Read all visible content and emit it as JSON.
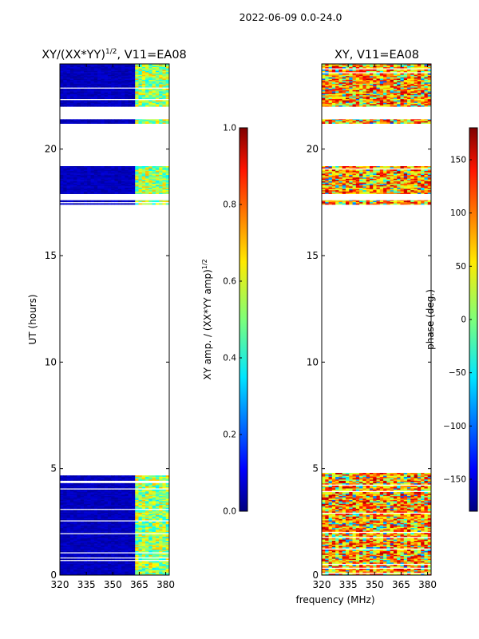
{
  "suptitle": "2022-06-09 0.0-24.0",
  "shared_xlabel": "frequency (MHz)",
  "colors": {
    "white": "#ffffff",
    "axes": "#000000"
  },
  "chart_data": [
    {
      "type": "heatmap",
      "title_main": "XY/(XX*YY)",
      "title_sup": "1/2",
      "title_tail": ", V11=EA08",
      "xlabel": "",
      "ylabel": "UT (hours)",
      "xlim": [
        320,
        382
      ],
      "ylim": [
        0,
        24
      ],
      "xticks": [
        "320",
        "335",
        "350",
        "365",
        "380"
      ],
      "xtick_values": [
        320,
        335,
        350,
        365,
        380
      ],
      "yticks": [
        "0",
        "5",
        "10",
        "15",
        "20"
      ],
      "ytick_values": [
        0,
        5,
        10,
        15,
        20
      ],
      "data_hour_ranges": [
        [
          0.0,
          4.8
        ],
        [
          17.4,
          17.6
        ],
        [
          17.9,
          19.2
        ],
        [
          21.2,
          21.4
        ],
        [
          22.0,
          24.0
        ]
      ],
      "colorbar": {
        "label": "XY amp. / (XX*YY amp)",
        "label_sup": "1/2",
        "colormap": "jet",
        "range": [
          0.0,
          1.0
        ],
        "ticks": [
          "0.0",
          "0.2",
          "0.4",
          "0.6",
          "0.8",
          "1.0"
        ],
        "tick_values": [
          0.0,
          0.2,
          0.4,
          0.6,
          0.8,
          1.0
        ]
      }
    },
    {
      "type": "heatmap",
      "title_main": "XY, V11=EA08",
      "xlabel": "frequency (MHz)",
      "ylabel": "",
      "xlim": [
        320,
        382
      ],
      "ylim": [
        0,
        24
      ],
      "xticks": [
        "320",
        "335",
        "350",
        "365",
        "380"
      ],
      "xtick_values": [
        320,
        335,
        350,
        365,
        380
      ],
      "yticks": [
        "0",
        "5",
        "10",
        "15",
        "20"
      ],
      "ytick_values": [
        0,
        5,
        10,
        15,
        20
      ],
      "data_hour_ranges": [
        [
          0.0,
          4.8
        ],
        [
          17.4,
          17.6
        ],
        [
          17.9,
          19.2
        ],
        [
          21.2,
          21.4
        ],
        [
          22.0,
          24.0
        ]
      ],
      "colorbar": {
        "label": "phase (deg.)",
        "colormap": "jet",
        "range": [
          -180,
          180
        ],
        "ticks": [
          "−150",
          "−100",
          "−50",
          "0",
          "50",
          "100",
          "150"
        ],
        "tick_values": [
          -150,
          -100,
          -50,
          0,
          50,
          100,
          150
        ]
      }
    }
  ]
}
